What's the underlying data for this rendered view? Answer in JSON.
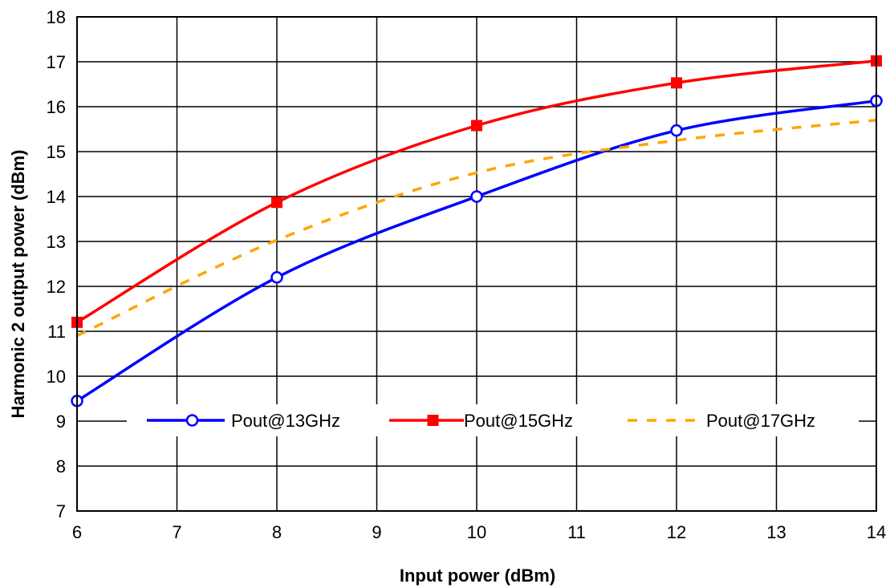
{
  "chart_data": {
    "type": "line",
    "title": "",
    "xlabel": "Input power (dBm)",
    "ylabel": "Harmonic 2 output power (dBm)",
    "xlim": [
      6,
      14
    ],
    "ylim": [
      7,
      18
    ],
    "xticks": [
      "6",
      "7",
      "8",
      "9",
      "10",
      "11",
      "12",
      "13",
      "14"
    ],
    "yticks": [
      "7",
      "8",
      "9",
      "10",
      "11",
      "12",
      "13",
      "14",
      "15",
      "16",
      "17",
      "18"
    ],
    "grid": true,
    "legend_position": "inside-bottom",
    "series": [
      {
        "name": "Pout@13GHz",
        "color": "#0000ff",
        "marker": "open-circle",
        "line_style": "solid",
        "x": [
          6,
          8,
          10,
          12,
          14
        ],
        "y": [
          9.45,
          12.2,
          14.0,
          15.47,
          16.13
        ]
      },
      {
        "name": "Pout@15GHz",
        "color": "#ff0000",
        "marker": "filled-square",
        "line_style": "solid",
        "x": [
          6,
          8,
          10,
          12,
          14
        ],
        "y": [
          11.2,
          13.87,
          15.58,
          16.53,
          17.02
        ]
      },
      {
        "name": "Pout@17GHz",
        "color": "#ffa500",
        "marker": "none",
        "line_style": "dashed",
        "x": [
          6,
          8,
          10,
          12,
          14
        ],
        "y": [
          10.9,
          13.03,
          14.53,
          15.25,
          15.7
        ]
      }
    ]
  }
}
